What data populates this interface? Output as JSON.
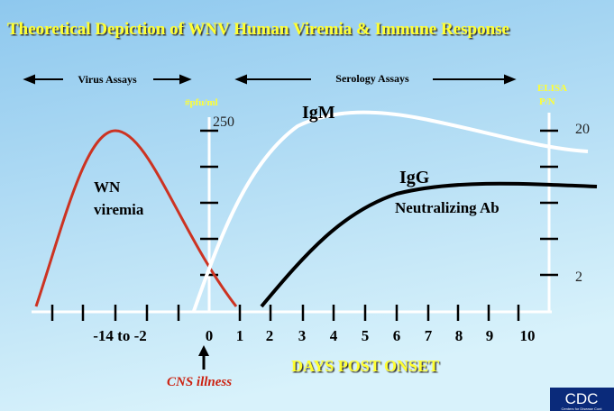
{
  "title": "Theoretical Depiction of WNV Human Viremia & Immune Response",
  "sections": {
    "virus": "Virus Assays",
    "serology": "Serology Assays"
  },
  "left_axis": {
    "unit": "#pfu/ml",
    "label": "250"
  },
  "right_axis": {
    "unit_line1": "ELISA",
    "unit_line2": "P/N",
    "labels": [
      "20",
      "2"
    ]
  },
  "x_axis": {
    "title": "DAYS POST ONSET",
    "labels": [
      "-14 to -2",
      "0",
      "1",
      "2",
      "3",
      "4",
      "5",
      "6",
      "7",
      "8",
      "9",
      "10"
    ]
  },
  "event": "CNS illness",
  "curves": {
    "viremia_line1": "WN",
    "viremia_line2": "viremia",
    "igm": "IgM",
    "igg": "IgG",
    "neutralizing": "Neutralizing Ab"
  },
  "logo": {
    "name": "CDC",
    "sub": "Centers for Disease Cont"
  }
}
